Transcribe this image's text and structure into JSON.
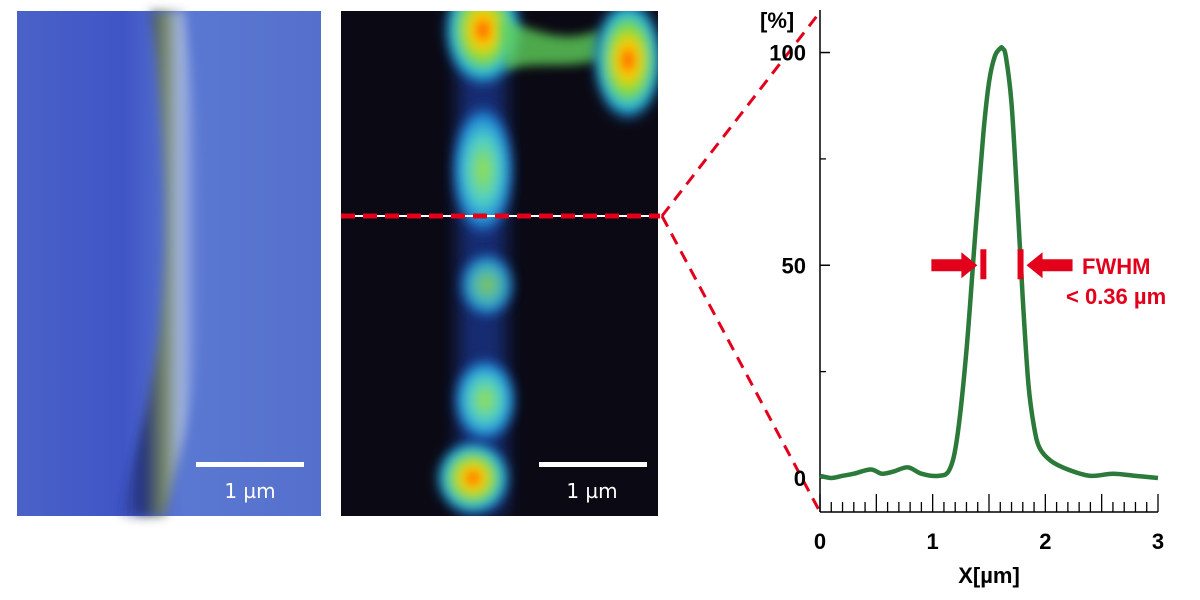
{
  "left_panel": {
    "scale_label": "1 µm"
  },
  "middle_panel": {
    "scale_label": "1 µm"
  },
  "chart_data": {
    "type": "line",
    "title": "",
    "xlabel": "X[µm]",
    "ylabel": "[%]",
    "xlim": [
      0,
      3
    ],
    "ylim": [
      -8,
      110
    ],
    "x_ticks": [
      0,
      1,
      2,
      3
    ],
    "x_tick_labels": [
      "0",
      "1",
      "2",
      "3"
    ],
    "y_ticks": [
      0,
      50,
      100
    ],
    "y_tick_labels": [
      "0",
      "50",
      "100"
    ],
    "grid": false,
    "series": [
      {
        "color": "#2b7a3a",
        "x": [
          0,
          0.1,
          0.2,
          0.3,
          0.45,
          0.55,
          0.65,
          0.78,
          0.9,
          1.05,
          1.15,
          1.22,
          1.3,
          1.38,
          1.45,
          1.5,
          1.55,
          1.6,
          1.62,
          1.65,
          1.7,
          1.75,
          1.8,
          1.85,
          1.9,
          1.95,
          2.05,
          2.2,
          2.4,
          2.6,
          2.8,
          3.0
        ],
        "y": [
          0.5,
          0,
          0.5,
          1,
          2,
          1,
          1.5,
          2.5,
          1,
          0.5,
          2,
          10,
          30,
          58,
          81,
          93,
          99,
          101,
          101,
          99,
          88,
          66,
          42,
          22,
          12,
          7,
          4,
          2,
          0.5,
          1,
          0.5,
          0
        ]
      }
    ],
    "fwhm": {
      "x_left": 1.45,
      "x_right": 1.78,
      "y": 50
    },
    "annotations": [
      "FWHM",
      "< 0.36 µm"
    ],
    "accent_color": "#e3001b"
  }
}
